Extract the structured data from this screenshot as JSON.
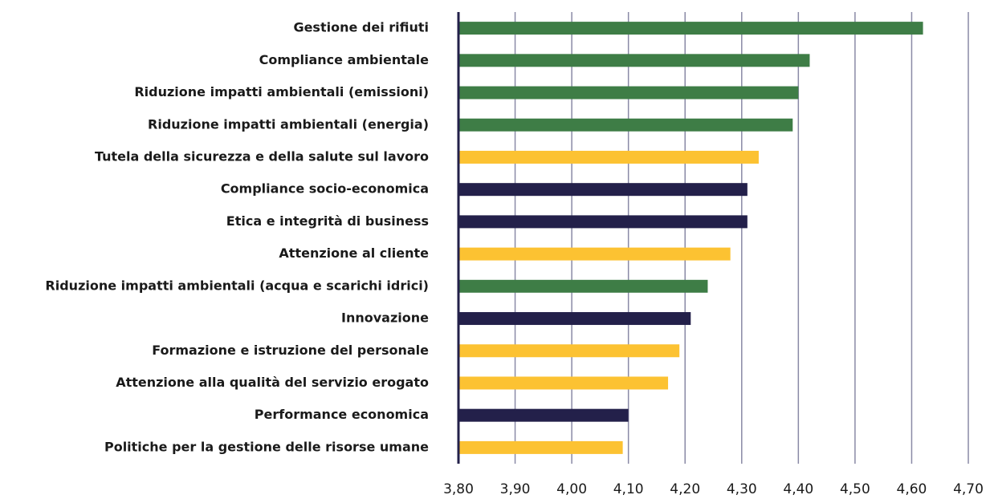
{
  "chart_data": {
    "type": "hbar",
    "categories": [
      "Gestione dei rifiuti",
      "Compliance ambientale",
      "Riduzione impatti ambientali (emissioni)",
      "Riduzione impatti ambientali (energia)",
      "Tutela della sicurezza e della salute sul lavoro",
      "Compliance socio-economica",
      "Etica e integrità di business",
      "Attenzione al cliente",
      "Riduzione impatti ambientali (acqua e scarichi idrici)",
      "Innovazione",
      "Formazione e istruzione del personale",
      "Attenzione alla qualità del servizio erogato",
      "Performance economica",
      "Politiche per la gestione delle risorse umane"
    ],
    "values": [
      4.62,
      4.42,
      4.4,
      4.39,
      4.33,
      4.31,
      4.31,
      4.28,
      4.24,
      4.21,
      4.19,
      4.17,
      4.1,
      4.09
    ],
    "colors": [
      "#3e7d46",
      "#3e7d46",
      "#3e7d46",
      "#3e7d46",
      "#fcc232",
      "#23204a",
      "#23204a",
      "#fcc232",
      "#3e7d46",
      "#23204a",
      "#fcc232",
      "#fcc232",
      "#23204a",
      "#fcc232"
    ],
    "xlim": [
      3.8,
      4.7
    ],
    "xticks": [
      {
        "value": 3.8,
        "label": "3,80"
      },
      {
        "value": 3.9,
        "label": "3,90"
      },
      {
        "value": 4.0,
        "label": "4,00"
      },
      {
        "value": 4.1,
        "label": "4,10"
      },
      {
        "value": 4.2,
        "label": "4,20"
      },
      {
        "value": 4.3,
        "label": "4,30"
      },
      {
        "value": 4.4,
        "label": "4,40"
      },
      {
        "value": 4.5,
        "label": "4,50"
      },
      {
        "value": 4.6,
        "label": "4,60"
      },
      {
        "value": 4.7,
        "label": "4,70"
      }
    ],
    "grid": true
  }
}
